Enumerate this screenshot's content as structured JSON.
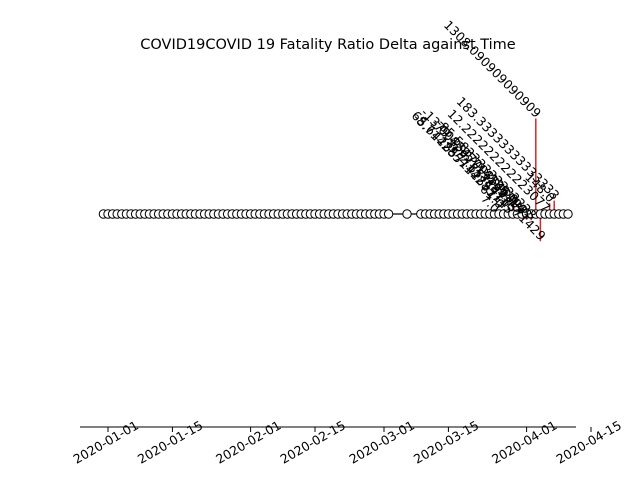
{
  "chart_data": {
    "type": "stem",
    "title": "COVID19COVID 19 Fatality Ratio Delta against Time",
    "xlabel": "",
    "ylabel": "",
    "x_tick_labels": [
      "2020-01-01",
      "2020-01-15",
      "2020-02-01",
      "2020-02-15",
      "2020-03-01",
      "2020-03-15",
      "2020-04-01",
      "2020-04-15"
    ],
    "zero_markers": {
      "start": "2019-12-31",
      "end": "2020-04-10",
      "missing": [
        "2020-03-03",
        "2020-03-04",
        "2020-03-05",
        "2020-03-07",
        "2020-03-08"
      ]
    },
    "stems": [
      {
        "date": "2020-03-25",
        "value": 7.0,
        "label": "7.0"
      },
      {
        "date": "2020-03-26",
        "value": 61.0,
        "label": "61.0"
      },
      {
        "date": "2020-03-27",
        "value": 65.64285714285714,
        "label": "65.64285714285714"
      },
      {
        "date": "2020-03-28",
        "value": -8.714285714285715,
        "label": "-8.714285714285715"
      },
      {
        "date": "2020-03-29",
        "value": 130.0,
        "label": "130.0"
      },
      {
        "date": "2020-03-30",
        "value": 2.75,
        "label": "2.75"
      },
      {
        "date": "2020-03-31",
        "value": -13.008547008546998,
        "label": "-13.008547008546998"
      },
      {
        "date": "2020-04-01",
        "value": -79.42857142857143,
        "label": "-79.42857142857143"
      },
      {
        "date": "2020-04-02",
        "value": -85.58333333333333,
        "label": "-85.58333333333333"
      },
      {
        "date": "2020-04-03",
        "value": 1308.090909090909,
        "label": "1308.090909090909"
      },
      {
        "date": "2020-04-04",
        "value": -372.8571428571429,
        "label": "-372.8571428571429"
      },
      {
        "date": "2020-04-05",
        "value": 12.222222222223078,
        "label": "12.222222222223077"
      },
      {
        "date": "2020-04-06",
        "value": 148.0,
        "label": "148.0"
      },
      {
        "date": "2020-04-07",
        "value": 183.33333333333334,
        "label": "183.33333333333333"
      }
    ],
    "axis_lines": {
      "left": false,
      "right": false,
      "top": false,
      "bottom": true
    },
    "grid": false,
    "colors": {
      "stem": "#d62728",
      "marker_edge": "#000000",
      "marker_fill": "#ffffff"
    }
  }
}
